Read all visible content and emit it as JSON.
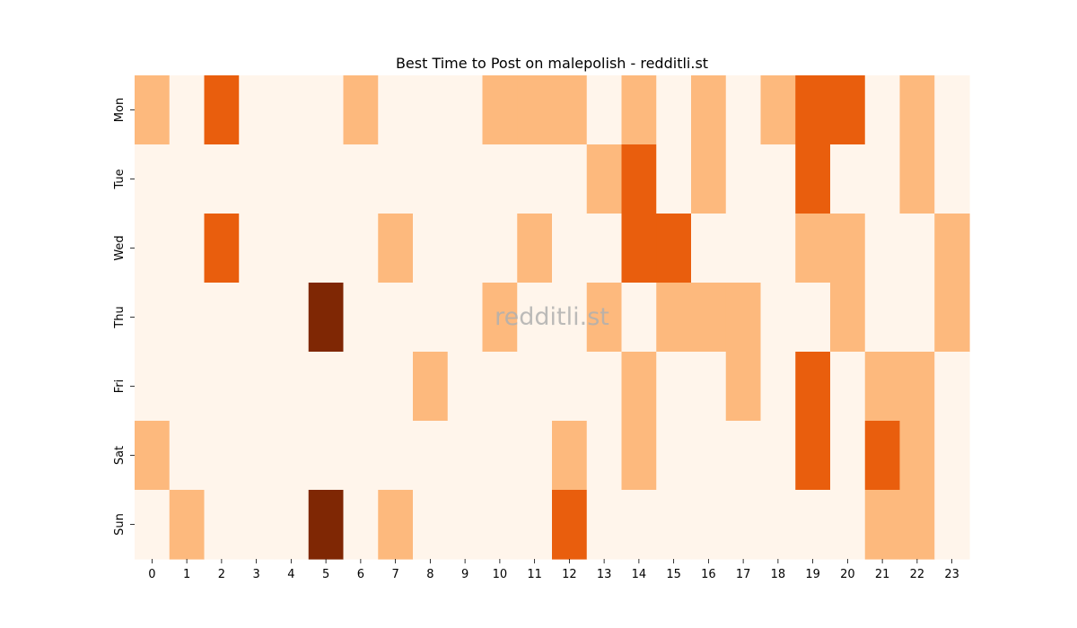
{
  "chart_data": {
    "type": "heatmap",
    "title": "Best Time to Post on malepolish - redditli.st",
    "watermark": "redditli.st",
    "x_categories": [
      "0",
      "1",
      "2",
      "3",
      "4",
      "5",
      "6",
      "7",
      "8",
      "9",
      "10",
      "11",
      "12",
      "13",
      "14",
      "15",
      "16",
      "17",
      "18",
      "19",
      "20",
      "21",
      "22",
      "23"
    ],
    "y_categories": [
      "Mon",
      "Tue",
      "Wed",
      "Thu",
      "Fri",
      "Sat",
      "Sun"
    ],
    "colormap": "Oranges",
    "color_levels": [
      "#fff5eb",
      "#fdb97d",
      "#e95e0d",
      "#7f2704"
    ],
    "values": [
      [
        1,
        0,
        2,
        0,
        0,
        0,
        1,
        0,
        0,
        0,
        1,
        1,
        1,
        0,
        1,
        0,
        1,
        0,
        1,
        2,
        2,
        0,
        1,
        0
      ],
      [
        0,
        0,
        0,
        0,
        0,
        0,
        0,
        0,
        0,
        0,
        0,
        0,
        0,
        1,
        2,
        0,
        1,
        0,
        0,
        2,
        0,
        0,
        1,
        0
      ],
      [
        0,
        0,
        2,
        0,
        0,
        0,
        0,
        1,
        0,
        0,
        0,
        1,
        0,
        0,
        2,
        2,
        0,
        0,
        0,
        1,
        1,
        0,
        0,
        1
      ],
      [
        0,
        0,
        0,
        0,
        0,
        3,
        0,
        0,
        0,
        0,
        1,
        0,
        0,
        1,
        0,
        1,
        1,
        1,
        0,
        0,
        1,
        0,
        0,
        1
      ],
      [
        0,
        0,
        0,
        0,
        0,
        0,
        0,
        0,
        1,
        0,
        0,
        0,
        0,
        0,
        1,
        0,
        0,
        1,
        0,
        2,
        0,
        1,
        1,
        0
      ],
      [
        1,
        0,
        0,
        0,
        0,
        0,
        0,
        0,
        0,
        0,
        0,
        0,
        1,
        0,
        1,
        0,
        0,
        0,
        0,
        2,
        0,
        2,
        1,
        0
      ],
      [
        0,
        1,
        0,
        0,
        0,
        3,
        0,
        1,
        0,
        0,
        0,
        0,
        2,
        0,
        0,
        0,
        0,
        0,
        0,
        0,
        0,
        1,
        1,
        0
      ]
    ],
    "vmin": 0,
    "vmax": 3,
    "colorbar": false,
    "grid": false
  }
}
